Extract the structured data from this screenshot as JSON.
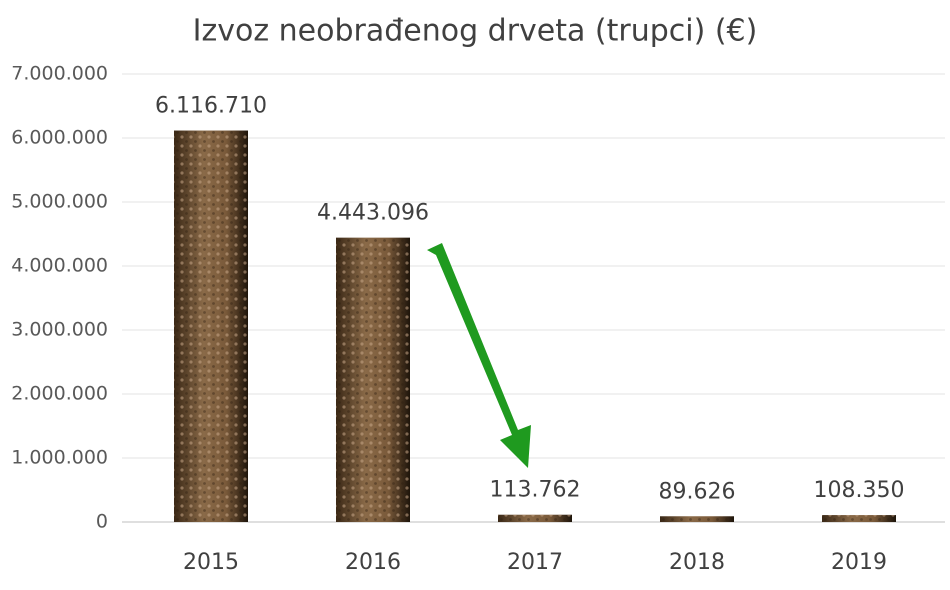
{
  "chart_data": {
    "type": "bar",
    "title": "Izvoz neobrađenog drveta (trupci) (€)",
    "categories": [
      "2015",
      "2016",
      "2017",
      "2018",
      "2019"
    ],
    "values": [
      6116710,
      4443096,
      113762,
      89626,
      108350
    ],
    "value_labels": [
      "6.116.710",
      "4.443.096",
      "113.762",
      "89.626",
      "108.350"
    ],
    "color": "#8a6a48",
    "ylim": [
      0,
      7000000
    ],
    "yticks": [
      0,
      {
        "value": 1000000,
        "label": "1.000.000"
      },
      {
        "value": 2000000,
        "label": "2.000.000"
      },
      {
        "value": 3000000,
        "label": "3.000.000"
      },
      {
        "value": 4000000,
        "label": "4.000.000"
      },
      {
        "value": 5000000,
        "label": "5.000.000"
      },
      {
        "value": 6000000,
        "label": "6.000.000"
      },
      {
        "value": 7000000,
        "label": "7.000.000"
      }
    ],
    "grid": true
  }
}
